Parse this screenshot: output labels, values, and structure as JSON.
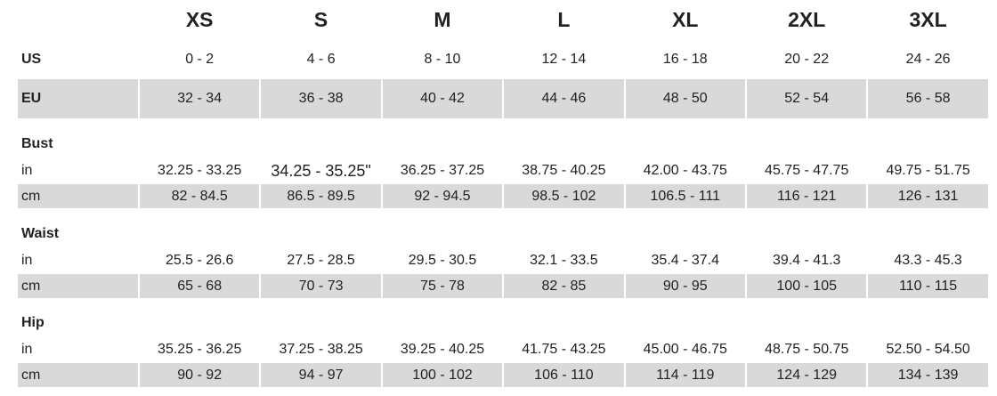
{
  "table": {
    "sizes": [
      "XS",
      "S",
      "M",
      "L",
      "XL",
      "2XL",
      "3XL"
    ],
    "us": {
      "label": "US",
      "values": [
        "0 - 2",
        "4 - 6",
        "8 - 10",
        "12 - 14",
        "16 - 18",
        "20 - 22",
        "24 - 26"
      ]
    },
    "eu": {
      "label": "EU",
      "values": [
        "32 - 34",
        "36 - 38",
        "40 - 42",
        "44 - 46",
        "48 - 50",
        "52 - 54",
        "56 - 58"
      ]
    },
    "sections": [
      {
        "title": "Bust",
        "rows": [
          {
            "label": "in",
            "values": [
              "32.25 - 33.25",
              "34.25 - 35.25\"",
              "36.25 - 37.25",
              "38.75 - 40.25",
              "42.00 - 43.75",
              "45.75 - 47.75",
              "49.75 - 51.75"
            ]
          },
          {
            "label": "cm",
            "values": [
              "82 - 84.5",
              "86.5 - 89.5",
              "92 - 94.5",
              "98.5 - 102",
              "106.5 - 111",
              "116 - 121",
              "126 - 131"
            ]
          }
        ]
      },
      {
        "title": "Waist",
        "rows": [
          {
            "label": "in",
            "values": [
              "25.5 - 26.6",
              "27.5 - 28.5",
              "29.5 - 30.5",
              "32.1 - 33.5",
              "35.4 - 37.4",
              "39.4 - 41.3",
              "43.3 - 45.3"
            ]
          },
          {
            "label": "cm",
            "values": [
              "65 - 68",
              "70 - 73",
              "75 - 78",
              "82 - 85",
              "90 - 95",
              "100 - 105",
              "110 - 115"
            ]
          }
        ]
      },
      {
        "title": "Hip",
        "rows": [
          {
            "label": "in",
            "values": [
              "35.25 - 36.25",
              "37.25 - 38.25",
              "39.25 - 40.25",
              "41.75 - 43.25",
              "45.00 - 46.75",
              "48.75 - 50.75",
              "52.50 - 54.50"
            ]
          },
          {
            "label": "cm",
            "values": [
              "90 - 92",
              "94 - 97",
              "100 - 102",
              "106 - 110",
              "114 - 119",
              "124 - 129",
              "134 - 139"
            ]
          }
        ]
      }
    ]
  }
}
